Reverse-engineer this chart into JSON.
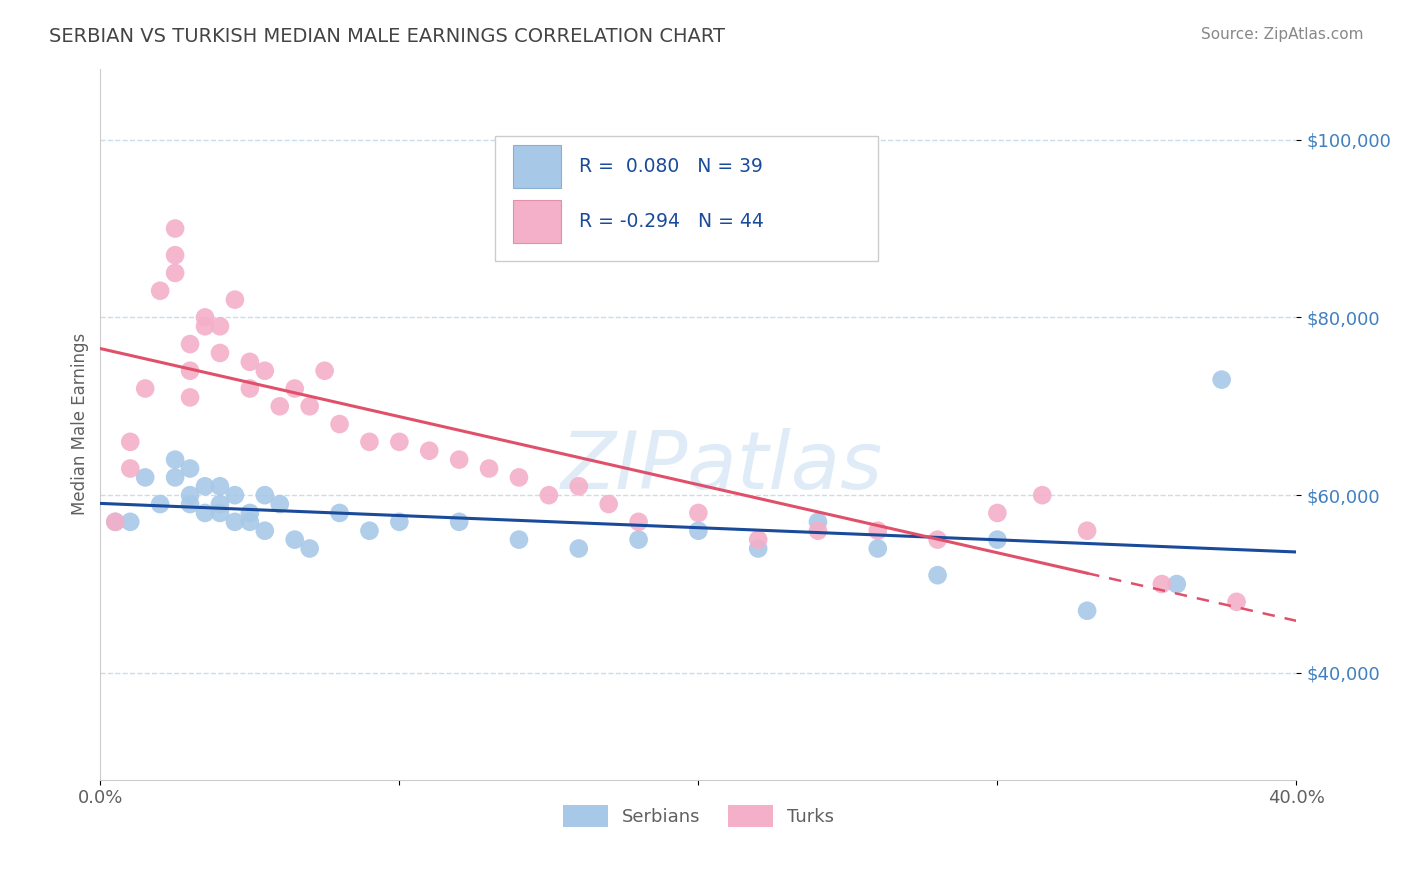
{
  "title": "SERBIAN VS TURKISH MEDIAN MALE EARNINGS CORRELATION CHART",
  "source_text": "Source: ZipAtlas.com",
  "ylabel": "Median Male Earnings",
  "watermark": "ZIPatlas",
  "xlim": [
    0.0,
    0.4
  ],
  "ylim": [
    28000,
    108000
  ],
  "yticks": [
    40000,
    60000,
    80000,
    100000
  ],
  "ytick_labels": [
    "$40,000",
    "$60,000",
    "$80,000",
    "$100,000"
  ],
  "xticks": [
    0.0,
    0.1,
    0.2,
    0.3,
    0.4
  ],
  "xtick_labels": [
    "0.0%",
    "",
    "",
    "",
    "40.0%"
  ],
  "legend_blue_label": "Serbians",
  "legend_pink_label": "Turks",
  "R_blue": 0.08,
  "N_blue": 39,
  "R_pink": -0.294,
  "N_pink": 44,
  "blue_color": "#a8c8e8",
  "pink_color": "#f4b0c8",
  "trendline_blue": "#1a4a9a",
  "trendline_pink": "#e0506a",
  "background_color": "#ffffff",
  "grid_color": "#c8dded",
  "title_color": "#444444",
  "axis_label_color": "#606060",
  "ytick_color": "#4080c0",
  "source_color": "#888888",
  "serbian_x": [
    0.005,
    0.01,
    0.015,
    0.02,
    0.025,
    0.025,
    0.03,
    0.03,
    0.03,
    0.035,
    0.035,
    0.04,
    0.04,
    0.04,
    0.045,
    0.045,
    0.05,
    0.05,
    0.055,
    0.055,
    0.06,
    0.065,
    0.07,
    0.08,
    0.09,
    0.1,
    0.12,
    0.14,
    0.16,
    0.18,
    0.2,
    0.22,
    0.24,
    0.26,
    0.28,
    0.3,
    0.33,
    0.36,
    0.375
  ],
  "serbian_y": [
    57000,
    57000,
    62000,
    59000,
    64000,
    62000,
    63000,
    59000,
    60000,
    61000,
    58000,
    61000,
    59000,
    58000,
    57000,
    60000,
    58000,
    57000,
    56000,
    60000,
    59000,
    55000,
    54000,
    58000,
    56000,
    57000,
    57000,
    55000,
    54000,
    55000,
    56000,
    54000,
    57000,
    54000,
    51000,
    55000,
    47000,
    50000,
    73000
  ],
  "turkish_x": [
    0.005,
    0.01,
    0.01,
    0.015,
    0.02,
    0.025,
    0.025,
    0.025,
    0.03,
    0.03,
    0.03,
    0.035,
    0.035,
    0.04,
    0.04,
    0.045,
    0.05,
    0.05,
    0.055,
    0.06,
    0.065,
    0.07,
    0.075,
    0.08,
    0.09,
    0.1,
    0.11,
    0.12,
    0.13,
    0.14,
    0.15,
    0.16,
    0.17,
    0.18,
    0.2,
    0.22,
    0.24,
    0.26,
    0.28,
    0.3,
    0.315,
    0.33,
    0.355,
    0.38
  ],
  "turkish_y": [
    57000,
    63000,
    66000,
    72000,
    83000,
    85000,
    87000,
    90000,
    71000,
    74000,
    77000,
    79000,
    80000,
    76000,
    79000,
    82000,
    75000,
    72000,
    74000,
    70000,
    72000,
    70000,
    74000,
    68000,
    66000,
    66000,
    65000,
    64000,
    63000,
    62000,
    60000,
    61000,
    59000,
    57000,
    58000,
    55000,
    56000,
    56000,
    55000,
    58000,
    60000,
    56000,
    50000,
    48000
  ]
}
